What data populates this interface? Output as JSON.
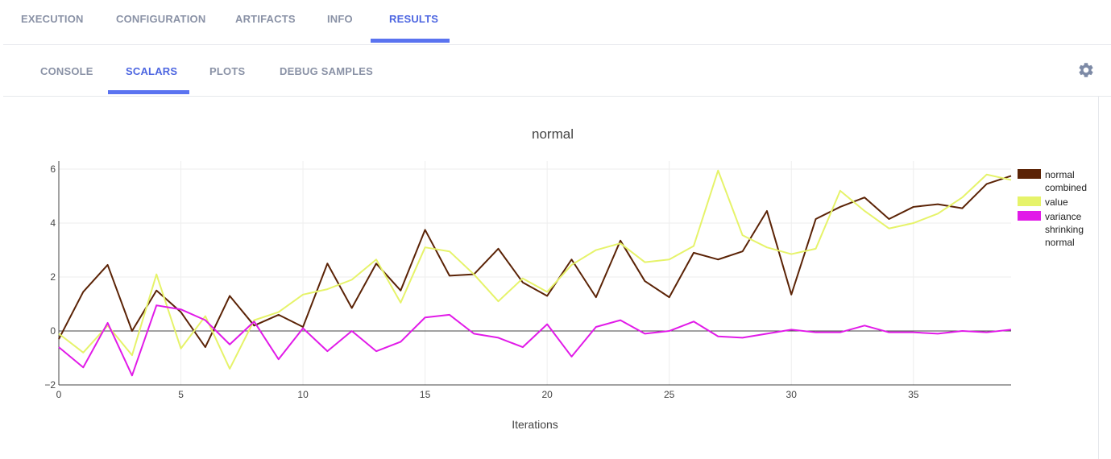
{
  "top_tabs": [
    "EXECUTION",
    "CONFIGURATION",
    "ARTIFACTS",
    "INFO",
    "RESULTS"
  ],
  "sub_tabs": [
    "CONSOLE",
    "SCALARS",
    "PLOTS",
    "DEBUG SAMPLES"
  ],
  "active_top_tab": "RESULTS",
  "active_sub_tab": "SCALARS",
  "settings_icon": "gear-icon",
  "colors": {
    "accent": "#5a73f0",
    "tab_text": "#8a92a6",
    "series_normal_combined": "#5b2306",
    "series_value": "#e6f36a",
    "series_variance": "#e11be8"
  },
  "chart_data": {
    "type": "line",
    "title": "normal",
    "xlabel": "Iterations",
    "ylabel": "",
    "xlim": [
      0,
      39
    ],
    "ylim": [
      -2,
      6.3
    ],
    "xticks": [
      0,
      5,
      10,
      15,
      20,
      25,
      30,
      35
    ],
    "yticks": [
      -2,
      0,
      2,
      4,
      6
    ],
    "grid": true,
    "legend_position": "right",
    "series": [
      {
        "name": "normal combined",
        "legend_lines": [
          "normal",
          "combined"
        ],
        "color": "#5b2306",
        "x": [
          0,
          1,
          2,
          3,
          4,
          5,
          6,
          7,
          8,
          9,
          10,
          11,
          12,
          13,
          14,
          15,
          16,
          17,
          18,
          19,
          20,
          21,
          22,
          23,
          24,
          25,
          26,
          27,
          28,
          29,
          30,
          31,
          32,
          33,
          34,
          35,
          36,
          37,
          38,
          39
        ],
        "values": [
          -0.3,
          1.45,
          2.45,
          0.0,
          1.5,
          0.7,
          -0.6,
          1.3,
          0.2,
          0.6,
          0.15,
          2.5,
          0.85,
          2.5,
          1.5,
          3.75,
          2.05,
          2.1,
          3.05,
          1.8,
          1.3,
          2.65,
          1.25,
          3.35,
          1.85,
          1.25,
          2.9,
          2.65,
          2.95,
          4.45,
          1.35,
          4.15,
          4.6,
          4.95,
          4.15,
          4.6,
          4.7,
          4.55,
          5.45,
          5.75
        ]
      },
      {
        "name": "value",
        "legend_lines": [
          "value"
        ],
        "color": "#e6f36a",
        "x": [
          0,
          1,
          2,
          3,
          4,
          5,
          6,
          7,
          8,
          9,
          10,
          11,
          12,
          13,
          14,
          15,
          16,
          17,
          18,
          19,
          20,
          21,
          22,
          23,
          24,
          25,
          26,
          27,
          28,
          29,
          30,
          31,
          32,
          33,
          34,
          35,
          36,
          37,
          38,
          39
        ],
        "values": [
          -0.1,
          -0.8,
          0.2,
          -0.9,
          2.1,
          -0.65,
          0.55,
          -1.4,
          0.4,
          0.7,
          1.35,
          1.55,
          1.9,
          2.65,
          1.05,
          3.1,
          2.95,
          2.1,
          1.1,
          1.95,
          1.45,
          2.45,
          3.0,
          3.25,
          2.55,
          2.65,
          3.15,
          5.95,
          3.55,
          3.1,
          2.85,
          3.05,
          5.2,
          4.45,
          3.8,
          4.0,
          4.35,
          4.95,
          5.8,
          5.6
        ]
      },
      {
        "name": "variance shrinking normal",
        "legend_lines": [
          "variance",
          "shrinking",
          "normal"
        ],
        "color": "#e11be8",
        "x": [
          0,
          1,
          2,
          3,
          4,
          5,
          6,
          7,
          8,
          9,
          10,
          11,
          12,
          13,
          14,
          15,
          16,
          17,
          18,
          19,
          20,
          21,
          22,
          23,
          24,
          25,
          26,
          27,
          28,
          29,
          30,
          31,
          32,
          33,
          34,
          35,
          36,
          37,
          38,
          39
        ],
        "values": [
          -0.6,
          -1.35,
          0.3,
          -1.65,
          0.95,
          0.8,
          0.4,
          -0.5,
          0.35,
          -1.05,
          0.1,
          -0.75,
          0.0,
          -0.75,
          -0.4,
          0.5,
          0.6,
          -0.1,
          -0.25,
          -0.6,
          0.25,
          -0.95,
          0.15,
          0.4,
          -0.1,
          0.0,
          0.35,
          -0.2,
          -0.25,
          -0.1,
          0.05,
          -0.05,
          -0.05,
          0.2,
          -0.05,
          -0.05,
          -0.1,
          0.0,
          -0.05,
          0.05
        ]
      }
    ]
  }
}
